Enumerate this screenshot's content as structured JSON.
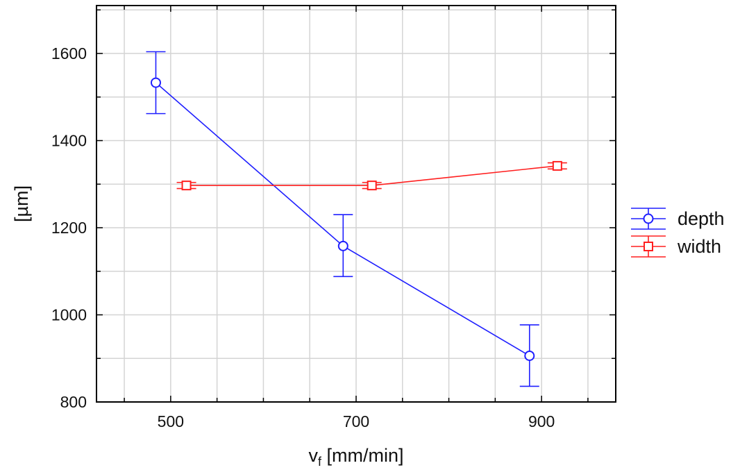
{
  "chart_data": {
    "type": "line",
    "xlabel_main": "v",
    "xlabel_sub": "f",
    "xlabel_rest": " [mm/min]",
    "ylabel": "[µm]",
    "xlim": [
      420,
      980
    ],
    "ylim": [
      800,
      1710
    ],
    "x_ticks": [
      500,
      700,
      900
    ],
    "x_tick_labels": [
      "500",
      "700",
      "900"
    ],
    "y_ticks": [
      800,
      1000,
      1200,
      1400,
      1600
    ],
    "y_tick_labels": [
      "800",
      "1000",
      "1200",
      "1400",
      "1600"
    ],
    "grid": true,
    "legend_position": "right",
    "series": [
      {
        "name": "depth",
        "color": "#1f1fff",
        "marker": "circle",
        "x": [
          484,
          686,
          887
        ],
        "y": [
          1533,
          1158,
          906
        ],
        "err_low": [
          1462,
          1088,
          836
        ],
        "err_high": [
          1604,
          1230,
          977
        ]
      },
      {
        "name": "width",
        "color": "#ff1f1f",
        "marker": "square",
        "x": [
          517,
          717,
          917
        ],
        "y": [
          1297,
          1297,
          1342
        ],
        "err_low": [
          1290,
          1290,
          1335
        ],
        "err_high": [
          1304,
          1304,
          1349
        ]
      }
    ]
  }
}
